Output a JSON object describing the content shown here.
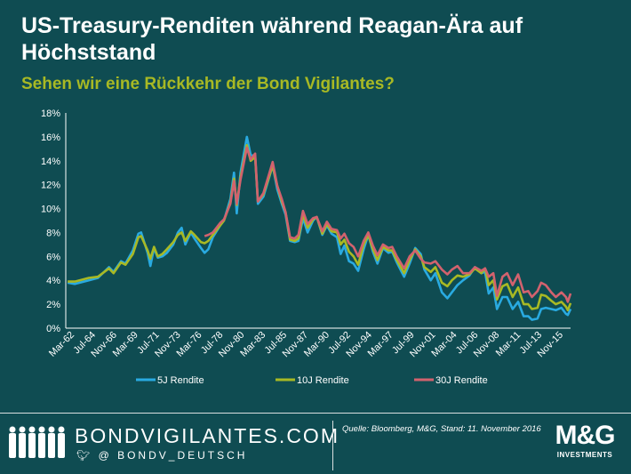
{
  "header": {
    "title": "US-Treasury-Renditen während Reagan-Ära auf Höchststand",
    "subtitle": "Sehen wir eine Rückkehr der Bond Vigilantes?"
  },
  "footer": {
    "brand": "BONDVIGILANTES.COM",
    "handle": "@ BONDV_DEUTSCH",
    "source": "Quelle: Bloomberg, M&G, Stand: 11. November 2016",
    "logo_main": "M&G",
    "logo_sub": "INVESTMENTS"
  },
  "colors": {
    "5J": "#29aae1",
    "10J": "#a8b924",
    "30J": "#d2626e",
    "background": "#0f4c52"
  },
  "chart_data": {
    "type": "line",
    "title": "US-Treasury-Renditen während Reagan-Ära auf Höchststand",
    "subtitle": "Sehen wir eine Rückkehr der Bond Vigilantes?",
    "x_ticks": [
      "Mar-62",
      "Jul-64",
      "Nov-66",
      "Mar-69",
      "Jul-71",
      "Nov-73",
      "Mar-76",
      "Jul-78",
      "Nov-80",
      "Mar-83",
      "Jul-85",
      "Nov-87",
      "Mar-90",
      "Jul-92",
      "Nov-94",
      "Mar-97",
      "Jul-99",
      "Nov-01",
      "Mar-04",
      "Jul-06",
      "Nov-08",
      "Mar-11",
      "Jul-13",
      "Nov-15"
    ],
    "y_ticks": [
      "0%",
      "2%",
      "4%",
      "6%",
      "8%",
      "10%",
      "12%",
      "14%",
      "16%",
      "18%"
    ],
    "ylim": [
      0,
      18
    ],
    "xlim": [
      1962.0,
      2016.9
    ],
    "legend_position": "bottom",
    "series": [
      {
        "name": "5J Rendite",
        "points": [
          [
            1962.2,
            3.8
          ],
          [
            1963.0,
            3.7
          ],
          [
            1964.5,
            4.0
          ],
          [
            1965.5,
            4.2
          ],
          [
            1966.7,
            5.1
          ],
          [
            1967.2,
            4.7
          ],
          [
            1968.0,
            5.6
          ],
          [
            1968.5,
            5.4
          ],
          [
            1969.3,
            6.5
          ],
          [
            1969.9,
            7.9
          ],
          [
            1970.2,
            8.0
          ],
          [
            1970.9,
            6.3
          ],
          [
            1971.2,
            5.2
          ],
          [
            1971.6,
            6.7
          ],
          [
            1972.0,
            5.9
          ],
          [
            1972.5,
            6.0
          ],
          [
            1973.0,
            6.3
          ],
          [
            1973.7,
            7.0
          ],
          [
            1974.2,
            8.0
          ],
          [
            1974.6,
            8.4
          ],
          [
            1975.0,
            7.0
          ],
          [
            1975.6,
            8.0
          ],
          [
            1976.0,
            7.5
          ],
          [
            1976.7,
            6.7
          ],
          [
            1977.1,
            6.3
          ],
          [
            1977.5,
            6.6
          ],
          [
            1978.0,
            7.6
          ],
          [
            1978.8,
            8.6
          ],
          [
            1979.2,
            9.0
          ],
          [
            1979.9,
            10.8
          ],
          [
            1980.3,
            13.0
          ],
          [
            1980.6,
            9.6
          ],
          [
            1981.0,
            13.0
          ],
          [
            1981.7,
            16.0
          ],
          [
            1982.1,
            14.5
          ],
          [
            1982.6,
            14.4
          ],
          [
            1982.9,
            10.4
          ],
          [
            1983.5,
            11.0
          ],
          [
            1984.5,
            13.6
          ],
          [
            1985.0,
            11.6
          ],
          [
            1985.5,
            10.4
          ],
          [
            1985.9,
            9.5
          ],
          [
            1986.4,
            7.3
          ],
          [
            1986.9,
            7.2
          ],
          [
            1987.3,
            7.3
          ],
          [
            1987.8,
            9.2
          ],
          [
            1988.3,
            8.0
          ],
          [
            1988.9,
            9.0
          ],
          [
            1989.3,
            9.3
          ],
          [
            1989.9,
            7.8
          ],
          [
            1990.4,
            8.6
          ],
          [
            1990.9,
            7.9
          ],
          [
            1991.5,
            7.6
          ],
          [
            1991.9,
            6.2
          ],
          [
            1992.3,
            6.9
          ],
          [
            1992.8,
            5.6
          ],
          [
            1993.3,
            5.4
          ],
          [
            1993.8,
            4.8
          ],
          [
            1994.4,
            6.6
          ],
          [
            1994.9,
            7.8
          ],
          [
            1995.4,
            6.4
          ],
          [
            1995.9,
            5.4
          ],
          [
            1996.5,
            6.7
          ],
          [
            1997.1,
            6.3
          ],
          [
            1997.5,
            6.4
          ],
          [
            1998.0,
            5.5
          ],
          [
            1998.8,
            4.3
          ],
          [
            1999.4,
            5.4
          ],
          [
            2000.0,
            6.7
          ],
          [
            2000.6,
            6.2
          ],
          [
            2001.0,
            4.9
          ],
          [
            2001.7,
            4.0
          ],
          [
            2002.2,
            4.6
          ],
          [
            2002.9,
            3.0
          ],
          [
            2003.5,
            2.5
          ],
          [
            2004.0,
            3.0
          ],
          [
            2004.6,
            3.6
          ],
          [
            2005.2,
            4.0
          ],
          [
            2005.9,
            4.4
          ],
          [
            2006.5,
            5.1
          ],
          [
            2007.2,
            4.6
          ],
          [
            2007.6,
            4.7
          ],
          [
            2008.0,
            2.9
          ],
          [
            2008.5,
            3.4
          ],
          [
            2008.9,
            1.6
          ],
          [
            2009.5,
            2.6
          ],
          [
            2010.0,
            2.6
          ],
          [
            2010.6,
            1.6
          ],
          [
            2011.2,
            2.2
          ],
          [
            2011.8,
            1.0
          ],
          [
            2012.3,
            1.0
          ],
          [
            2012.7,
            0.7
          ],
          [
            2013.3,
            0.8
          ],
          [
            2013.7,
            1.6
          ],
          [
            2014.2,
            1.7
          ],
          [
            2014.8,
            1.6
          ],
          [
            2015.3,
            1.5
          ],
          [
            2015.9,
            1.7
          ],
          [
            2016.4,
            1.2
          ],
          [
            2016.6,
            1.1
          ],
          [
            2016.9,
            1.6
          ]
        ]
      },
      {
        "name": "10J Rendite",
        "points": [
          [
            1962.2,
            3.9
          ],
          [
            1963.0,
            3.9
          ],
          [
            1964.5,
            4.2
          ],
          [
            1965.5,
            4.3
          ],
          [
            1966.7,
            5.0
          ],
          [
            1967.2,
            4.6
          ],
          [
            1968.0,
            5.5
          ],
          [
            1968.5,
            5.3
          ],
          [
            1969.3,
            6.2
          ],
          [
            1969.9,
            7.6
          ],
          [
            1970.2,
            7.7
          ],
          [
            1970.9,
            6.5
          ],
          [
            1971.2,
            5.8
          ],
          [
            1971.6,
            6.8
          ],
          [
            1972.0,
            6.0
          ],
          [
            1972.5,
            6.2
          ],
          [
            1973.0,
            6.6
          ],
          [
            1973.7,
            7.2
          ],
          [
            1974.2,
            7.8
          ],
          [
            1974.6,
            8.0
          ],
          [
            1975.0,
            7.3
          ],
          [
            1975.6,
            8.1
          ],
          [
            1976.0,
            7.8
          ],
          [
            1976.7,
            7.2
          ],
          [
            1977.1,
            7.1
          ],
          [
            1977.5,
            7.3
          ],
          [
            1978.0,
            7.8
          ],
          [
            1978.8,
            8.6
          ],
          [
            1979.2,
            9.0
          ],
          [
            1979.9,
            10.5
          ],
          [
            1980.3,
            12.5
          ],
          [
            1980.6,
            10.3
          ],
          [
            1981.0,
            12.6
          ],
          [
            1981.7,
            15.3
          ],
          [
            1982.1,
            14.0
          ],
          [
            1982.6,
            14.3
          ],
          [
            1982.9,
            10.6
          ],
          [
            1983.5,
            11.2
          ],
          [
            1984.5,
            13.6
          ],
          [
            1985.0,
            11.9
          ],
          [
            1985.5,
            10.6
          ],
          [
            1985.9,
            9.7
          ],
          [
            1986.4,
            7.4
          ],
          [
            1986.9,
            7.3
          ],
          [
            1987.3,
            7.5
          ],
          [
            1987.8,
            9.5
          ],
          [
            1988.3,
            8.4
          ],
          [
            1988.9,
            9.1
          ],
          [
            1989.3,
            9.3
          ],
          [
            1989.9,
            7.9
          ],
          [
            1990.4,
            8.7
          ],
          [
            1990.9,
            8.1
          ],
          [
            1991.5,
            8.0
          ],
          [
            1991.9,
            7.0
          ],
          [
            1992.3,
            7.4
          ],
          [
            1992.8,
            6.4
          ],
          [
            1993.3,
            6.0
          ],
          [
            1993.8,
            5.3
          ],
          [
            1994.4,
            7.0
          ],
          [
            1994.9,
            7.8
          ],
          [
            1995.4,
            6.6
          ],
          [
            1995.9,
            5.7
          ],
          [
            1996.5,
            6.8
          ],
          [
            1997.1,
            6.5
          ],
          [
            1997.5,
            6.5
          ],
          [
            1998.0,
            5.7
          ],
          [
            1998.8,
            4.6
          ],
          [
            1999.4,
            5.7
          ],
          [
            2000.0,
            6.6
          ],
          [
            2000.6,
            6.0
          ],
          [
            2001.0,
            5.1
          ],
          [
            2001.7,
            4.7
          ],
          [
            2002.2,
            5.1
          ],
          [
            2002.9,
            3.8
          ],
          [
            2003.5,
            3.5
          ],
          [
            2004.0,
            4.0
          ],
          [
            2004.6,
            4.4
          ],
          [
            2005.2,
            4.3
          ],
          [
            2005.9,
            4.5
          ],
          [
            2006.5,
            5.0
          ],
          [
            2007.2,
            4.6
          ],
          [
            2007.6,
            5.0
          ],
          [
            2008.0,
            3.6
          ],
          [
            2008.5,
            4.0
          ],
          [
            2008.9,
            2.4
          ],
          [
            2009.5,
            3.5
          ],
          [
            2010.0,
            3.7
          ],
          [
            2010.6,
            2.6
          ],
          [
            2011.2,
            3.4
          ],
          [
            2011.8,
            2.0
          ],
          [
            2012.3,
            2.0
          ],
          [
            2012.7,
            1.6
          ],
          [
            2013.3,
            1.7
          ],
          [
            2013.7,
            2.8
          ],
          [
            2014.2,
            2.7
          ],
          [
            2014.8,
            2.3
          ],
          [
            2015.3,
            2.0
          ],
          [
            2015.9,
            2.2
          ],
          [
            2016.4,
            1.8
          ],
          [
            2016.6,
            1.5
          ],
          [
            2016.9,
            2.1
          ]
        ]
      },
      {
        "name": "30J Rendite",
        "points": [
          [
            1977.1,
            7.7
          ],
          [
            1977.5,
            7.8
          ],
          [
            1978.0,
            8.0
          ],
          [
            1978.8,
            8.8
          ],
          [
            1979.2,
            9.1
          ],
          [
            1979.9,
            10.4
          ],
          [
            1980.3,
            12.3
          ],
          [
            1980.6,
            10.4
          ],
          [
            1981.0,
            12.4
          ],
          [
            1981.7,
            15.1
          ],
          [
            1982.1,
            14.1
          ],
          [
            1982.6,
            14.6
          ],
          [
            1982.9,
            10.6
          ],
          [
            1983.5,
            11.3
          ],
          [
            1984.5,
            13.9
          ],
          [
            1985.0,
            11.9
          ],
          [
            1985.5,
            10.8
          ],
          [
            1985.9,
            9.7
          ],
          [
            1986.4,
            7.6
          ],
          [
            1986.9,
            7.5
          ],
          [
            1987.3,
            7.8
          ],
          [
            1987.8,
            9.8
          ],
          [
            1988.3,
            8.7
          ],
          [
            1988.9,
            9.2
          ],
          [
            1989.3,
            9.3
          ],
          [
            1989.9,
            8.1
          ],
          [
            1990.4,
            8.9
          ],
          [
            1990.9,
            8.3
          ],
          [
            1991.5,
            8.2
          ],
          [
            1991.9,
            7.5
          ],
          [
            1992.3,
            7.9
          ],
          [
            1992.8,
            7.1
          ],
          [
            1993.3,
            6.8
          ],
          [
            1993.8,
            6.0
          ],
          [
            1994.4,
            7.3
          ],
          [
            1994.9,
            8.0
          ],
          [
            1995.4,
            6.9
          ],
          [
            1995.9,
            6.1
          ],
          [
            1996.5,
            7.0
          ],
          [
            1997.1,
            6.7
          ],
          [
            1997.5,
            6.8
          ],
          [
            1998.0,
            6.0
          ],
          [
            1998.8,
            5.0
          ],
          [
            1999.4,
            6.0
          ],
          [
            2000.0,
            6.5
          ],
          [
            2000.6,
            5.8
          ],
          [
            2001.0,
            5.5
          ],
          [
            2001.7,
            5.4
          ],
          [
            2002.2,
            5.6
          ],
          [
            2002.9,
            4.9
          ],
          [
            2003.5,
            4.5
          ],
          [
            2004.0,
            4.9
          ],
          [
            2004.6,
            5.2
          ],
          [
            2005.2,
            4.6
          ],
          [
            2005.9,
            4.6
          ],
          [
            2006.5,
            5.1
          ],
          [
            2007.2,
            4.8
          ],
          [
            2007.6,
            5.0
          ],
          [
            2008.0,
            4.3
          ],
          [
            2008.5,
            4.6
          ],
          [
            2008.9,
            2.7
          ],
          [
            2009.5,
            4.3
          ],
          [
            2010.0,
            4.6
          ],
          [
            2010.6,
            3.6
          ],
          [
            2011.2,
            4.5
          ],
          [
            2011.8,
            3.0
          ],
          [
            2012.3,
            3.1
          ],
          [
            2012.7,
            2.6
          ],
          [
            2013.3,
            3.1
          ],
          [
            2013.7,
            3.8
          ],
          [
            2014.2,
            3.6
          ],
          [
            2014.8,
            3.0
          ],
          [
            2015.3,
            2.6
          ],
          [
            2015.9,
            3.0
          ],
          [
            2016.4,
            2.6
          ],
          [
            2016.6,
            2.2
          ],
          [
            2016.9,
            2.9
          ]
        ]
      }
    ]
  }
}
